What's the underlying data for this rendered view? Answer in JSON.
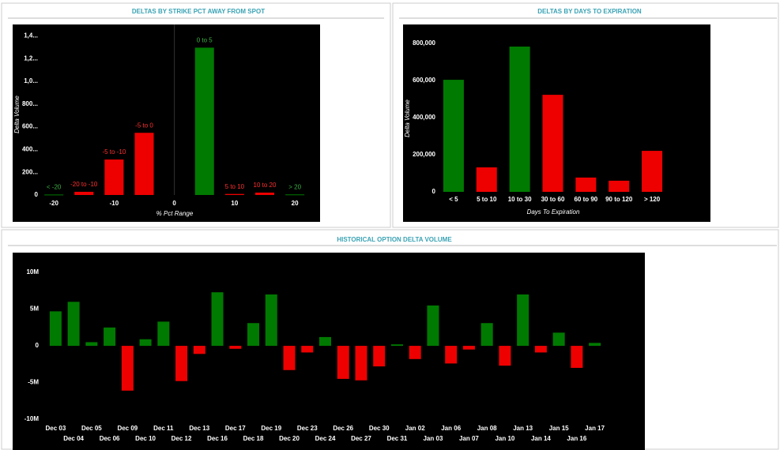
{
  "chart_data": [
    {
      "type": "bar",
      "title": "DELTAS BY STRIKE PCT AWAY FROM SPOT",
      "y_label": "Delta Volume",
      "x_label": "% Pct Range",
      "categories": [
        "< -20",
        "-20 to -10",
        "-5 to -10",
        "-5 to 0",
        "0 to 5",
        "5 to 10",
        "10 to 20",
        "> 20"
      ],
      "x": [
        -20,
        -15,
        -10,
        -5,
        5,
        10,
        15,
        20
      ],
      "values": [
        4000,
        28000,
        312000,
        547000,
        1296000,
        9000,
        21000,
        5000
      ],
      "colors": [
        "#007a00",
        "#ee0000",
        "#ee0000",
        "#ee0000",
        "#007a00",
        "#ee0000",
        "#ee0000",
        "#007a00"
      ],
      "xlim": [
        -25,
        23
      ],
      "xticks": [
        -20,
        -10,
        0,
        10,
        20
      ],
      "ylim": [
        -80000,
        1500000
      ],
      "yticks": [
        0,
        {
          "value": 200000,
          "label": "200..."
        },
        {
          "value": 400000,
          "label": "400..."
        },
        {
          "value": 600000,
          "label": "600..."
        },
        {
          "value": 800000,
          "label": "800..."
        },
        {
          "value": 1000000,
          "label": "1,0..."
        },
        {
          "value": 1200000,
          "label": "1,2..."
        },
        {
          "value": 1400000,
          "label": "1,4..."
        }
      ]
    },
    {
      "type": "bar",
      "title": "DELTAS BY DAYS TO EXPIRATION",
      "y_label": "Delta Volume",
      "x_label": "Days To Expiration",
      "categories": [
        "< 5",
        "5 to 10",
        "10 to 30",
        "30 to 60",
        "60 to 90",
        "90 to 120",
        "> 120"
      ],
      "values": [
        604000,
        132000,
        783000,
        523000,
        77000,
        60000,
        221000
      ],
      "colors": [
        "#007a00",
        "#ee0000",
        "#007a00",
        "#ee0000",
        "#ee0000",
        "#ee0000",
        "#ee0000"
      ],
      "ylim": [
        -40000,
        900000
      ],
      "yticks": [
        0,
        {
          "value": 200000,
          "label": "200,000"
        },
        {
          "value": 400000,
          "label": "400,000"
        },
        {
          "value": 600000,
          "label": "600,000"
        },
        {
          "value": 800000,
          "label": "800,000"
        }
      ]
    },
    {
      "type": "bar",
      "title": "HISTORICAL OPTION DELTA VOLUME",
      "categories": [
        "Dec 03",
        "Dec 04",
        "Dec 05",
        "Dec 06",
        "Dec 09",
        "Dec 10",
        "Dec 11",
        "Dec 12",
        "Dec 13",
        "Dec 16",
        "Dec 17",
        "Dec 18",
        "Dec 19",
        "Dec 20",
        "Dec 23",
        "Dec 24",
        "Dec 26",
        "Dec 27",
        "Dec 30",
        "Dec 31",
        "Jan 02",
        "Jan 03",
        "Jan 06",
        "Jan 07",
        "Jan 08",
        "Jan 10",
        "Jan 13",
        "Jan 14",
        "Jan 15",
        "Jan 16",
        "Jan 17"
      ],
      "values": [
        4700000,
        6000000,
        500000,
        2500000,
        -6100000,
        900000,
        3300000,
        -4800000,
        -1100000,
        7300000,
        -400000,
        3100000,
        7000000,
        -3300000,
        -900000,
        1200000,
        -4500000,
        -4700000,
        -2800000,
        200000,
        -1800000,
        5500000,
        -2400000,
        -500000,
        3100000,
        -2700000,
        7000000,
        -900000,
        1800000,
        -3000000,
        400000
      ],
      "positive_color": "#007a00",
      "negative_color": "#ee0000",
      "ylim": [
        -11500000,
        12700000
      ],
      "yticks": [
        {
          "value": -10000000,
          "label": "-10M"
        },
        {
          "value": -5000000,
          "label": "-5M"
        },
        0,
        {
          "value": 5000000,
          "label": "5M"
        },
        {
          "value": 10000000,
          "label": "10M"
        }
      ]
    }
  ]
}
